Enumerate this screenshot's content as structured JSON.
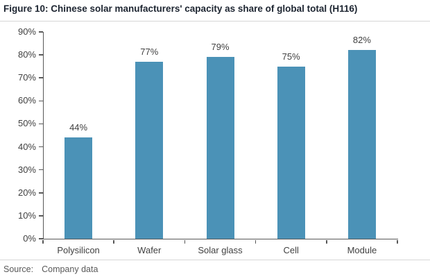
{
  "title": "Figure 10: Chinese solar manufacturers' capacity as share of global total (H116)",
  "source": {
    "label": "Source:",
    "text": "Company data"
  },
  "chart_data": {
    "type": "bar",
    "title": "Figure 10: Chinese solar manufacturers' capacity as share of global total (H116)",
    "categories": [
      "Polysilicon",
      "Wafer",
      "Solar glass",
      "Cell",
      "Module"
    ],
    "values": [
      44,
      77,
      79,
      75,
      82
    ],
    "value_labels": [
      "44%",
      "77%",
      "79%",
      "75%",
      "82%"
    ],
    "xlabel": "",
    "ylabel": "",
    "ylim": [
      0,
      90
    ],
    "ytick_step": 10,
    "ytick_labels": [
      "0%",
      "10%",
      "20%",
      "30%",
      "40%",
      "50%",
      "60%",
      "70%",
      "80%",
      "90%"
    ],
    "grid": false,
    "legend": null,
    "source_note": "Source:  Company data",
    "colors": {
      "bar": "#4b92b7",
      "axis": "#595959",
      "tick_label": "#404040",
      "title_text": "#1d2531",
      "source_text": "#595959",
      "rule": "#d6d6d6",
      "background": "#ffffff"
    }
  }
}
